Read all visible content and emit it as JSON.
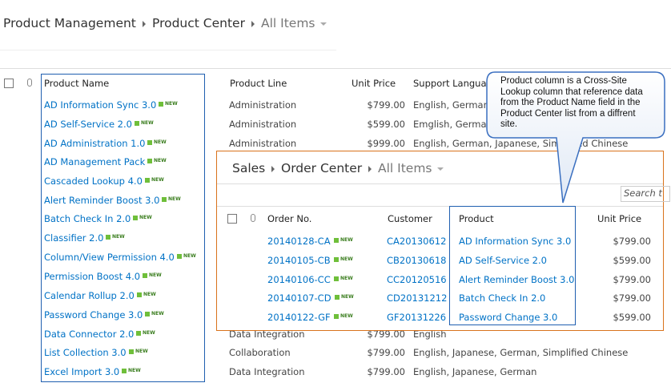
{
  "breadcrumb": [
    "Product Management",
    "Product Center",
    "All Items"
  ],
  "products": {
    "columns": [
      "Product Name",
      "Product Line",
      "Unit Price",
      "Support Langua"
    ],
    "new_badge": "NEW",
    "rows": [
      [
        "AD Information Sync 3.0",
        "Administration",
        "$799.00",
        "English, German"
      ],
      [
        "AD Self-Service 2.0",
        "Administration",
        "$599.00",
        "Emglish, German"
      ],
      [
        "AD Administration 1.0",
        "Administration",
        "$999.00",
        "English, German, Japanese, Simplified Chinese"
      ],
      [
        "AD Management Pack"
      ],
      [
        "Cascaded Lookup 4.0"
      ],
      [
        "Alert Reminder Boost 3.0"
      ],
      [
        "Batch Check In 2.0"
      ],
      [
        "Classifier 2.0"
      ],
      [
        "Column/View Permission 4.0"
      ],
      [
        "Permission Boost 4.0"
      ],
      [
        "Calendar Rollup 2.0"
      ],
      [
        "Password Change 3.0"
      ],
      [
        "Data Connector 2.0",
        "Data Integration",
        "$799.00",
        "English"
      ],
      [
        "List Collection 3.0",
        "Collaboration",
        "$799.00",
        "English, Japanese, German, Simplified Chinese"
      ],
      [
        "Excel Import 3.0",
        "Data Integration",
        "$799.00",
        "English, Japanese, German"
      ]
    ]
  },
  "orders": {
    "breadcrumb": [
      "Sales",
      "Order Center",
      "All Items"
    ],
    "search": "Search t",
    "columns": [
      "Order No.",
      "Customer",
      "Product",
      "Unit Price"
    ],
    "rows": [
      [
        "20140128-CA",
        "CA20130612",
        "AD Information Sync 3.0",
        "$799.00"
      ],
      [
        "20140105-CB",
        "CB20130618",
        "AD Self-Service 2.0",
        "$599.00"
      ],
      [
        "20140106-CC",
        "CC20120516",
        "Alert Reminder Boost 3.0",
        "$799.00"
      ],
      [
        "20140107-CD",
        "CD20131212",
        "Batch Check In 2.0",
        "$799.00"
      ],
      [
        "20140122-GF",
        "GF20131226",
        "Password Change 3.0",
        "$599.00"
      ]
    ]
  },
  "callout": "Product column is a Cross-Site Lookup column that reference data from the Product Name field in the Product Center list from a diffrent site."
}
